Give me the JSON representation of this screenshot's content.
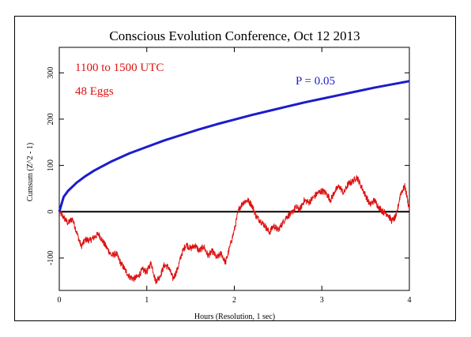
{
  "chart_data": {
    "type": "line",
    "title": "Conscious Evolution Conference, Oct 12 2013",
    "xlabel": "Hours (Resolution, 1 sec)",
    "ylabel": "Cumsum (Z^2 - 1)",
    "xlim": [
      0,
      4
    ],
    "ylim": [
      -170,
      355
    ],
    "x_ticks": [
      0,
      1,
      2,
      3,
      4
    ],
    "y_ticks": [
      -100,
      0,
      100,
      200,
      300
    ],
    "grid": false,
    "annotations": [
      {
        "text": "1100 to 1500 UTC",
        "color": "#dd1111"
      },
      {
        "text": "48 Eggs",
        "color": "#dd1111"
      },
      {
        "text": "P = 0.05",
        "color": "#1c1ccc"
      }
    ],
    "series": [
      {
        "color": "#dd1111",
        "x": [
          0,
          0.05,
          0.1,
          0.15,
          0.2,
          0.25,
          0.3,
          0.35,
          0.4,
          0.45,
          0.5,
          0.55,
          0.6,
          0.65,
          0.7,
          0.75,
          0.8,
          0.85,
          0.9,
          0.95,
          1.0,
          1.05,
          1.1,
          1.15,
          1.2,
          1.25,
          1.3,
          1.35,
          1.4,
          1.45,
          1.5,
          1.55,
          1.6,
          1.65,
          1.7,
          1.75,
          1.8,
          1.85,
          1.9,
          1.95,
          2.0,
          2.05,
          2.1,
          2.15,
          2.2,
          2.25,
          2.3,
          2.35,
          2.4,
          2.45,
          2.5,
          2.55,
          2.6,
          2.65,
          2.7,
          2.75,
          2.8,
          2.85,
          2.9,
          2.95,
          3.0,
          3.05,
          3.1,
          3.15,
          3.2,
          3.25,
          3.3,
          3.35,
          3.4,
          3.45,
          3.5,
          3.55,
          3.6,
          3.65,
          3.7,
          3.75,
          3.8,
          3.85,
          3.9,
          3.95,
          4.0
        ],
        "values": [
          0,
          -12,
          -25,
          -15,
          -45,
          -75,
          -60,
          -62,
          -55,
          -48,
          -65,
          -80,
          -95,
          -90,
          -110,
          -125,
          -140,
          -145,
          -140,
          -125,
          -130,
          -110,
          -150,
          -140,
          -115,
          -120,
          -145,
          -125,
          -90,
          -70,
          -80,
          -72,
          -85,
          -75,
          -95,
          -85,
          -100,
          -90,
          -110,
          -75,
          -40,
          5,
          20,
          25,
          15,
          -10,
          -20,
          -30,
          -45,
          -30,
          -40,
          -25,
          -10,
          -5,
          10,
          5,
          25,
          20,
          30,
          40,
          45,
          40,
          25,
          45,
          55,
          40,
          60,
          65,
          75,
          55,
          35,
          15,
          25,
          10,
          0,
          -5,
          -20,
          -10,
          40,
          55,
          5
        ],
        "lw": 1
      },
      {
        "name": "P = 0.05",
        "color": "#1c1ccc",
        "x": [
          0,
          0.05,
          0.1,
          0.2,
          0.3,
          0.4,
          0.5,
          0.6,
          0.8,
          1.0,
          1.2,
          1.4,
          1.6,
          1.8,
          2.0,
          2.2,
          2.4,
          2.6,
          2.8,
          3.0,
          3.2,
          3.4,
          3.6,
          3.8,
          4.0
        ],
        "values": [
          0,
          32,
          45,
          63,
          77,
          89,
          99,
          109,
          126,
          140,
          154,
          166,
          178,
          189,
          199,
          209,
          218,
          227,
          236,
          244,
          252,
          260,
          268,
          275,
          282
        ],
        "lw": 3
      }
    ]
  }
}
